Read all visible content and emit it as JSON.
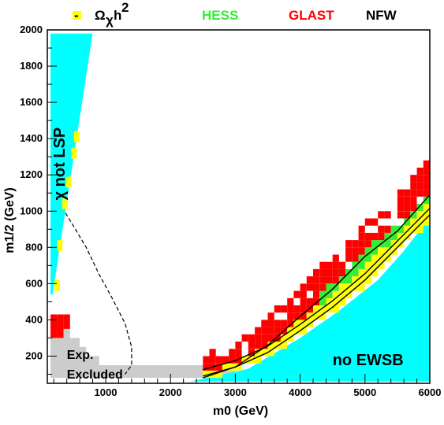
{
  "chart_data": {
    "type": "scatter",
    "xlabel": "m0 (GeV)",
    "ylabel": "m1/2 (GeV)",
    "xlim": [
      100,
      6000
    ],
    "ylim": [
      50,
      2000
    ],
    "x_ticks": [
      "1000",
      "2000",
      "3000",
      "4000",
      "5000",
      "6000"
    ],
    "y_ticks": [
      "200",
      "400",
      "600",
      "800",
      "1000",
      "1200",
      "1400",
      "1600",
      "1800",
      "2000"
    ],
    "legend": {
      "relic_marker": "-",
      "relic_label": "Ω",
      "relic_sub": "χ",
      "relic_h": "h",
      "relic_sup": "2",
      "hess": "HESS",
      "glast": "GLAST",
      "profile": "NFW"
    },
    "colors": {
      "relic": "#ffff00",
      "hess": "#33ee33",
      "glast": "#ff0000",
      "theory_excluded": "#00ffff",
      "exp_excluded": "#cccccc"
    },
    "region_labels": {
      "not_lsp": "χ not LSP",
      "exp_excluded_1": "Exp.",
      "exp_excluded_2": "Excluded",
      "no_ewsb": "no EWSB"
    },
    "regions": {
      "chi_not_lsp": [
        [
          150,
          1980
        ],
        [
          800,
          1980
        ],
        [
          180,
          540
        ],
        [
          150,
          540
        ]
      ],
      "no_ewsb": [
        [
          2300,
          60
        ],
        [
          3200,
          130
        ],
        [
          4000,
          300
        ],
        [
          4600,
          450
        ],
        [
          5200,
          620
        ],
        [
          5600,
          780
        ],
        [
          5900,
          920
        ],
        [
          6000,
          940
        ],
        [
          6000,
          60
        ]
      ],
      "exp_excluded": [
        [
          150,
          80
        ],
        [
          150,
          350
        ],
        [
          450,
          350
        ],
        [
          450,
          300
        ],
        [
          600,
          300
        ],
        [
          600,
          250
        ],
        [
          700,
          250
        ],
        [
          700,
          200
        ],
        [
          900,
          200
        ],
        [
          900,
          150
        ],
        [
          3000,
          150
        ],
        [
          3000,
          80
        ]
      ],
      "ewsb_band_lower": [
        [
          2500,
          70
        ],
        [
          3000,
          120
        ],
        [
          3500,
          200
        ],
        [
          4000,
          320
        ],
        [
          4500,
          450
        ],
        [
          5000,
          600
        ],
        [
          5500,
          780
        ],
        [
          6000,
          960
        ]
      ],
      "ewsb_band_upper": [
        [
          2500,
          110
        ],
        [
          3000,
          170
        ],
        [
          3500,
          290
        ],
        [
          4000,
          450
        ],
        [
          4500,
          600
        ],
        [
          5000,
          780
        ],
        [
          5500,
          920
        ],
        [
          6000,
          1120
        ]
      ]
    },
    "exclusion_contour": [
      [
        380,
        990
      ],
      [
        500,
        920
      ],
      [
        700,
        800
      ],
      [
        900,
        650
      ],
      [
        1100,
        520
      ],
      [
        1300,
        380
      ],
      [
        1400,
        250
      ],
      [
        1400,
        150
      ],
      [
        1300,
        100
      ]
    ]
  }
}
